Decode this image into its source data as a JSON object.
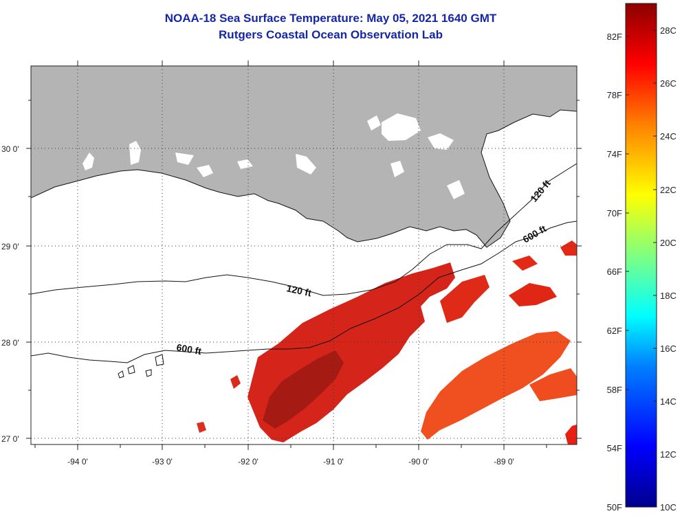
{
  "title": {
    "line1": "NOAA-18 Sea Surface Temperature:  May 05, 2021 1640 GMT",
    "line2": "Rutgers Coastal Ocean Observation Lab"
  },
  "latitude_labels": [
    "30 0'",
    "29 0'",
    "28 0'",
    "27 0'"
  ],
  "longitude_labels": [
    "-94 0'",
    "-93 0'",
    "-92 0'",
    "-91 0'",
    "-90 0'",
    "-89 0'"
  ],
  "contour_labels": [
    "120 ft",
    "600 ft",
    "120 ft",
    "600 ft"
  ],
  "colorbar": {
    "fahrenheit_labels": [
      "82F",
      "78F",
      "74F",
      "70F",
      "66F",
      "62F",
      "58F",
      "54F",
      "50F"
    ],
    "celsius_labels": [
      "28C",
      "26C",
      "24C",
      "22C",
      "20C",
      "18C",
      "16C",
      "14C",
      "12C",
      "10C"
    ],
    "range_celsius": [
      10,
      29
    ],
    "colors": [
      "#00008b",
      "#0000ff",
      "#0080ff",
      "#00ffff",
      "#80ff80",
      "#ffff00",
      "#ff8000",
      "#ff0000",
      "#8b0000"
    ]
  },
  "colors": {
    "land": "#b4b4b4",
    "title": "#1426a8",
    "sst_deep_red": "#b0180f",
    "sst_red": "#e3220f",
    "sst_orange": "#f04f1d"
  }
}
